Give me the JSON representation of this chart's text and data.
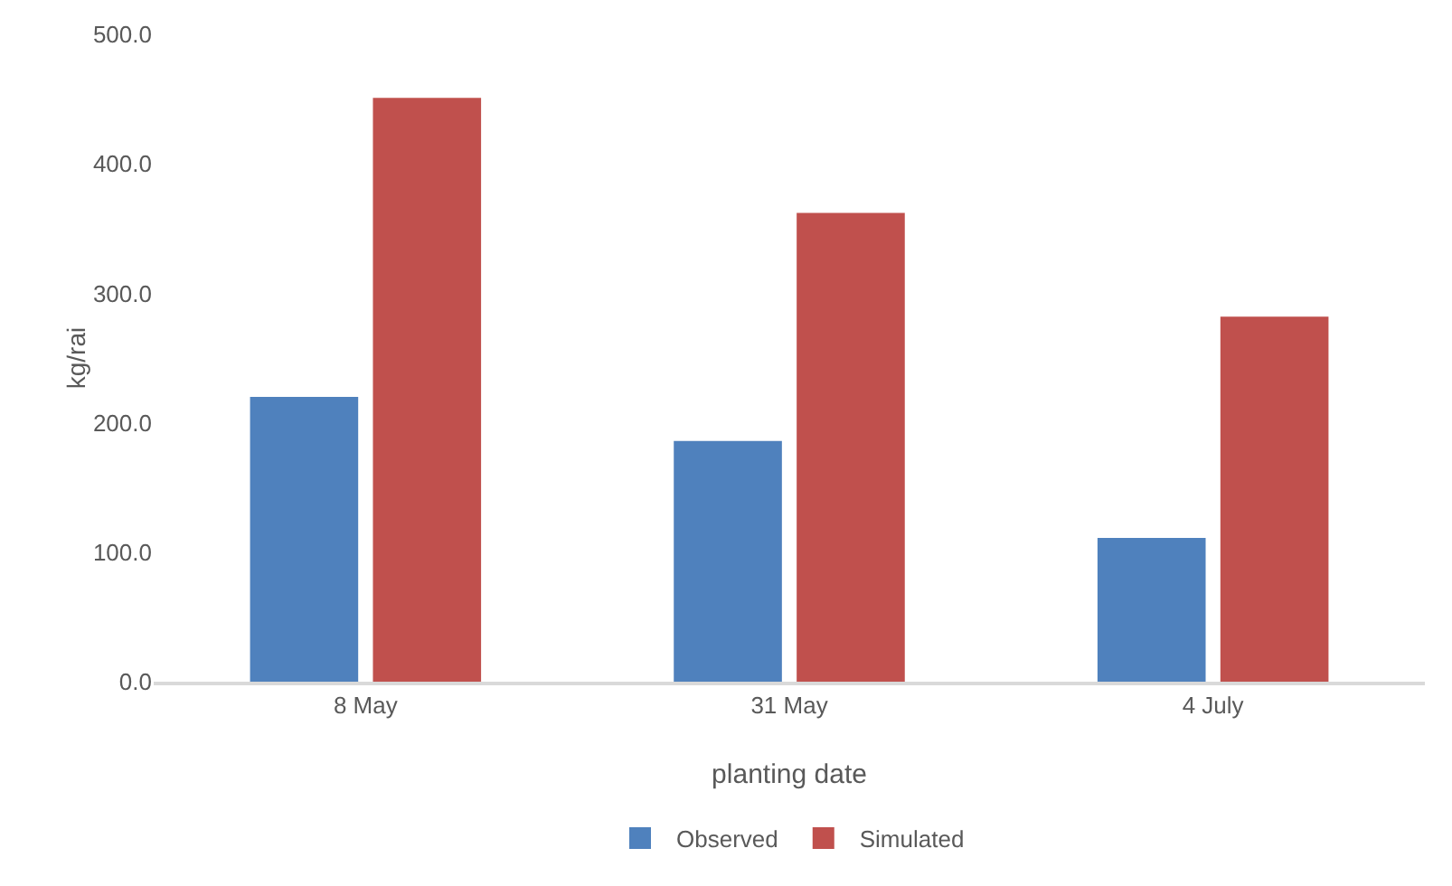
{
  "chart_data": {
    "type": "bar",
    "xlabel": "planting date",
    "ylabel": "kg/rai",
    "categories": [
      "8 May",
      "31 May",
      "4 July"
    ],
    "series": [
      {
        "name": "Observed",
        "color": "#4f81bd",
        "values": [
          220,
          186,
          111
        ]
      },
      {
        "name": "Simulated",
        "color": "#c0504d",
        "values": [
          451,
          362,
          282
        ]
      }
    ],
    "ylim": [
      0,
      500
    ],
    "yticks": [
      {
        "value": 0,
        "label": "0.0"
      },
      {
        "value": 100,
        "label": "100.0"
      },
      {
        "value": 200,
        "label": "200.0"
      },
      {
        "value": 300,
        "label": "300.0"
      },
      {
        "value": 400,
        "label": "400.0"
      },
      {
        "value": 500,
        "label": "500.0"
      }
    ],
    "grid": false,
    "legend": "bottom"
  }
}
